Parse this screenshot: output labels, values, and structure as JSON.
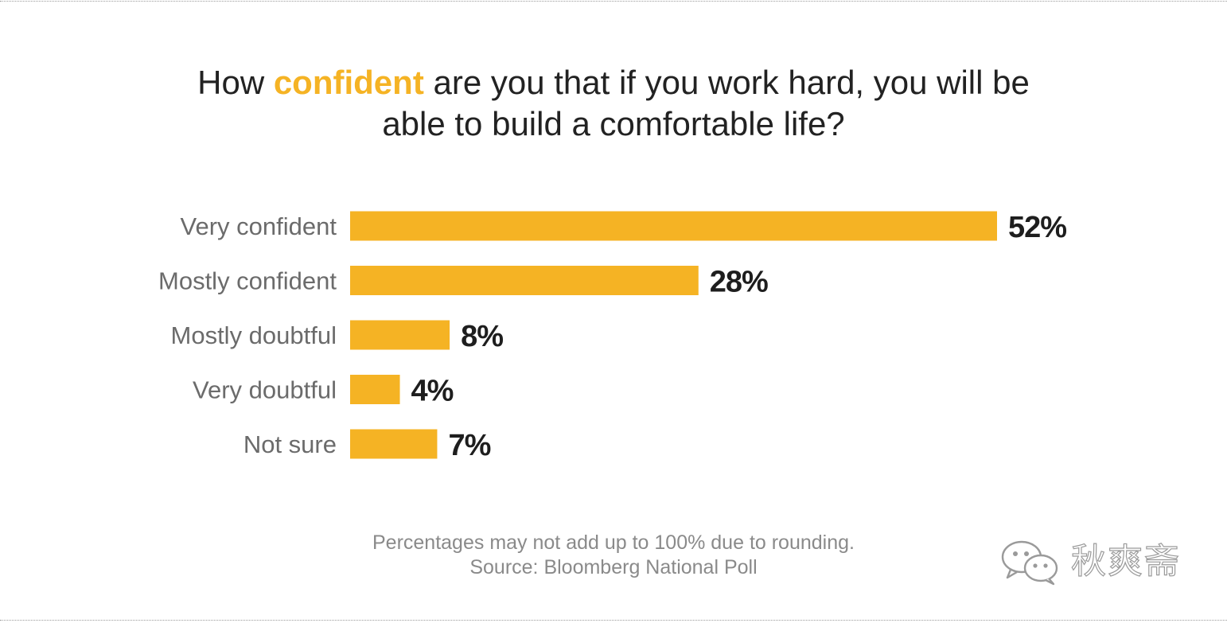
{
  "title": {
    "before": "How ",
    "highlight": "confident",
    "after_line1": " are you that if you work hard, you will be",
    "line2": "able to build a comfortable life?"
  },
  "colors": {
    "bar": "#f5b324",
    "highlight": "#f5b324",
    "category_text": "#6b6b6b",
    "value_text": "#1e1e1e"
  },
  "chart_data": {
    "type": "bar",
    "orientation": "horizontal",
    "categories": [
      "Very confident",
      "Mostly confident",
      "Mostly doubtful",
      "Very doubtful",
      "Not sure"
    ],
    "values": [
      52,
      28,
      8,
      4,
      7
    ],
    "value_labels": [
      "52%",
      "28%",
      "8%",
      "4%",
      "7%"
    ],
    "unit": "%",
    "xlim": [
      0,
      52
    ],
    "grid": false,
    "legend": "none"
  },
  "footnote": {
    "note": "Percentages may not add up to 100% due to rounding.",
    "source": "Source: Bloomberg National Poll"
  },
  "watermark": {
    "text": "秋爽斋",
    "icon": "wechat-chat-bubbles-icon"
  }
}
